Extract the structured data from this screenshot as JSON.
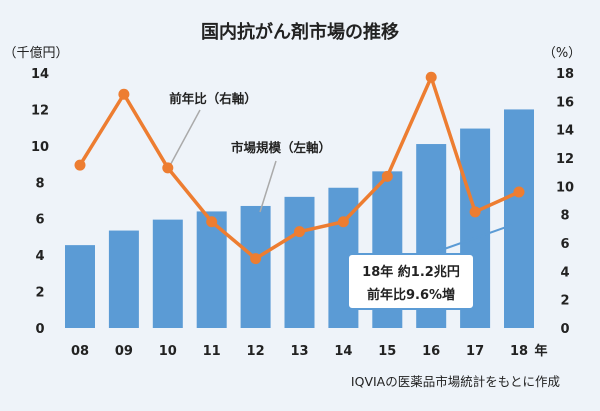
{
  "chart_data": {
    "type": "bar",
    "title": "国内抗がん剤市場の推移",
    "left_unit": "（千億円）",
    "right_unit": "（%）",
    "x_unit": "年",
    "categories": [
      "08",
      "09",
      "10",
      "11",
      "12",
      "13",
      "14",
      "15",
      "16",
      "17",
      "18"
    ],
    "left_axis": {
      "min": 0,
      "max": 14,
      "ticks": [
        0,
        2,
        4,
        6,
        8,
        10,
        12,
        14
      ]
    },
    "right_axis": {
      "min": 0,
      "max": 18,
      "ticks": [
        0,
        2,
        4,
        6,
        8,
        10,
        12,
        14,
        16,
        18
      ]
    },
    "series": [
      {
        "name": "市場規模（左軸）",
        "type": "bar",
        "axis": "left",
        "color": "#5b9bd5",
        "values": [
          4.55,
          5.35,
          5.95,
          6.4,
          6.7,
          7.2,
          7.7,
          8.6,
          10.1,
          10.95,
          12.0
        ]
      },
      {
        "name": "前年比（右軸）",
        "type": "line",
        "axis": "right",
        "color": "#ed7d31",
        "values": [
          11.5,
          16.5,
          11.3,
          7.5,
          4.9,
          6.8,
          7.5,
          10.7,
          17.7,
          8.2,
          9.6
        ]
      }
    ],
    "annotation_lines": [
      "18年 約1.2兆円",
      "前年比9.6%増"
    ],
    "source": "IQVIAの医薬品市場統計をもとに作成",
    "grid": false,
    "legend": "inline labels"
  }
}
